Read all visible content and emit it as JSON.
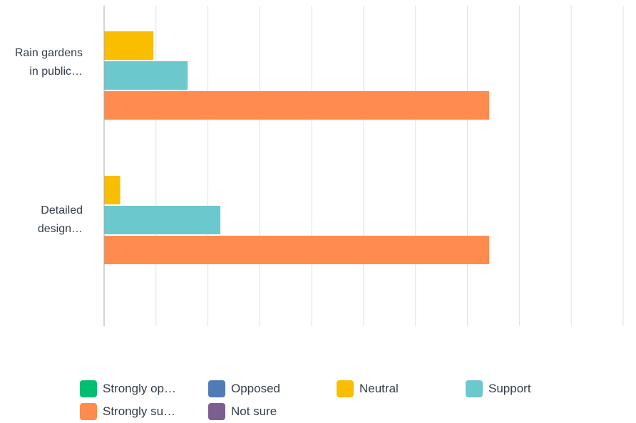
{
  "chart_data": {
    "type": "bar",
    "orientation": "horizontal",
    "categories": [
      "Rain gardens in public…",
      "Detailed design…"
    ],
    "category_label_lines": [
      [
        "Rain gardens",
        "in public…"
      ],
      [
        "Detailed",
        "design…"
      ]
    ],
    "series": [
      {
        "name": "Strongly op…",
        "color": "#00bf6f",
        "values": [
          0,
          0
        ]
      },
      {
        "name": "Opposed",
        "color": "#507cb6",
        "values": [
          0,
          0
        ]
      },
      {
        "name": "Neutral",
        "color": "#f9be00",
        "values": [
          9.5,
          3.1
        ]
      },
      {
        "name": "Support",
        "color": "#6bc8cd",
        "values": [
          16.1,
          22.4
        ]
      },
      {
        "name": "Strongly su…",
        "color": "#ff8b4f",
        "values": [
          74.2,
          74.2
        ]
      },
      {
        "name": "Not sure",
        "color": "#7d5e90",
        "values": [
          0,
          0
        ]
      }
    ],
    "xlim": [
      0,
      100
    ],
    "xticks": [
      "0%",
      "10%",
      "20%",
      "30%",
      "40%",
      "50%",
      "60%",
      "70%",
      "80%",
      "90%",
      "100%"
    ],
    "xlabel": "",
    "ylabel": "",
    "title": "",
    "grid": true,
    "legend_position": "bottom"
  }
}
